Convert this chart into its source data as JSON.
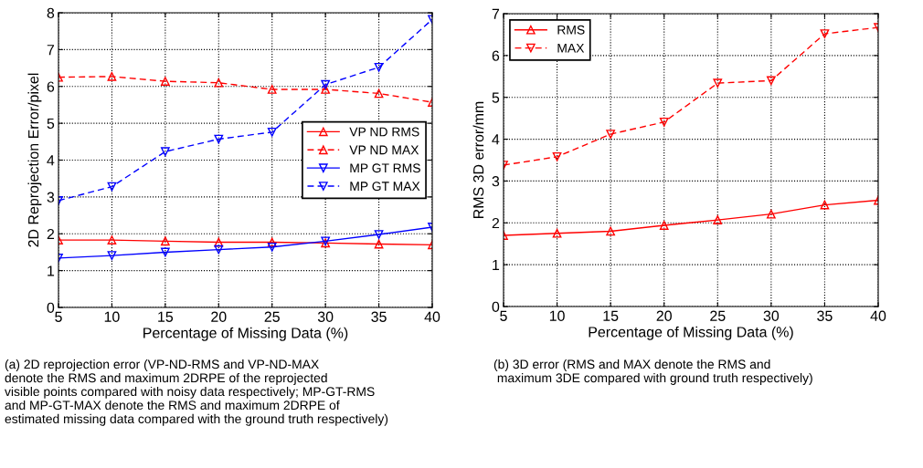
{
  "chart_data": [
    {
      "type": "line",
      "xlabel": "Percentage of Missing Data (%)",
      "ylabel": "2D Reprojection Error/pixel",
      "x": [
        5,
        10,
        15,
        20,
        25,
        30,
        35,
        40
      ],
      "xlim": [
        5,
        40
      ],
      "xticks": [
        5,
        10,
        15,
        20,
        25,
        30,
        35,
        40
      ],
      "ylim": [
        0,
        8
      ],
      "yticks": [
        0,
        1,
        2,
        3,
        4,
        5,
        6,
        7,
        8
      ],
      "grid": true,
      "legend": "right",
      "series": [
        {
          "name": "VP ND RMS",
          "color": "#ff0000",
          "marker": "triangle",
          "line_style": "solid",
          "values": [
            1.83,
            1.83,
            1.8,
            1.77,
            1.77,
            1.75,
            1.72,
            1.7
          ]
        },
        {
          "name": "VP ND MAX",
          "color": "#ff0000",
          "marker": "triangle",
          "line_style": "dashed",
          "values": [
            6.25,
            6.27,
            6.14,
            6.1,
            5.92,
            5.92,
            5.81,
            5.57
          ]
        },
        {
          "name": "MP GT RMS",
          "color": "#0000ff",
          "marker": "triangle_down",
          "line_style": "solid",
          "values": [
            1.34,
            1.41,
            1.5,
            1.57,
            1.64,
            1.8,
            1.98,
            2.18
          ]
        },
        {
          "name": "MP GT MAX",
          "color": "#0000ff",
          "marker": "triangle_down",
          "line_style": "dashed",
          "values": [
            2.9,
            3.28,
            4.23,
            4.57,
            4.76,
            6.05,
            6.52,
            7.82
          ]
        }
      ],
      "annotations": [
        "(a) 2D reprojection error (VP-ND-RMS and VP-ND-MAX\ndenote the RMS and maximum 2DRPE of the reprojected\nvisible points compared with noisy data respectively; MP-GT-RMS\nand MP-GT-MAX denote the RMS and maximum 2DRPE of\nestimated missing data compared with the ground truth respectively)"
      ]
    },
    {
      "type": "line",
      "xlabel": "Percentage of Missing Data (%)",
      "ylabel": "RMS 3D error/mm",
      "x": [
        5,
        10,
        15,
        20,
        25,
        30,
        35,
        40
      ],
      "xlim": [
        5,
        40
      ],
      "xticks": [
        5,
        10,
        15,
        20,
        25,
        30,
        35,
        40
      ],
      "ylim": [
        0,
        7
      ],
      "yticks": [
        0,
        1,
        2,
        3,
        4,
        5,
        6,
        7
      ],
      "grid": true,
      "legend": "top left",
      "series": [
        {
          "name": "RMS",
          "color": "#ff0000",
          "marker": "triangle",
          "line_style": "solid",
          "values": [
            1.7,
            1.75,
            1.8,
            1.94,
            2.07,
            2.21,
            2.43,
            2.54
          ]
        },
        {
          "name": "MAX",
          "color": "#ff0000",
          "marker": "triangle_down",
          "line_style": "dashed",
          "values": [
            3.38,
            3.58,
            4.12,
            4.41,
            5.34,
            5.4,
            6.52,
            6.67
          ]
        }
      ],
      "annotations": [
        "(b) 3D error (RMS and MAX denote the RMS and\n maximum 3DE compared with ground truth respectively)"
      ]
    }
  ]
}
